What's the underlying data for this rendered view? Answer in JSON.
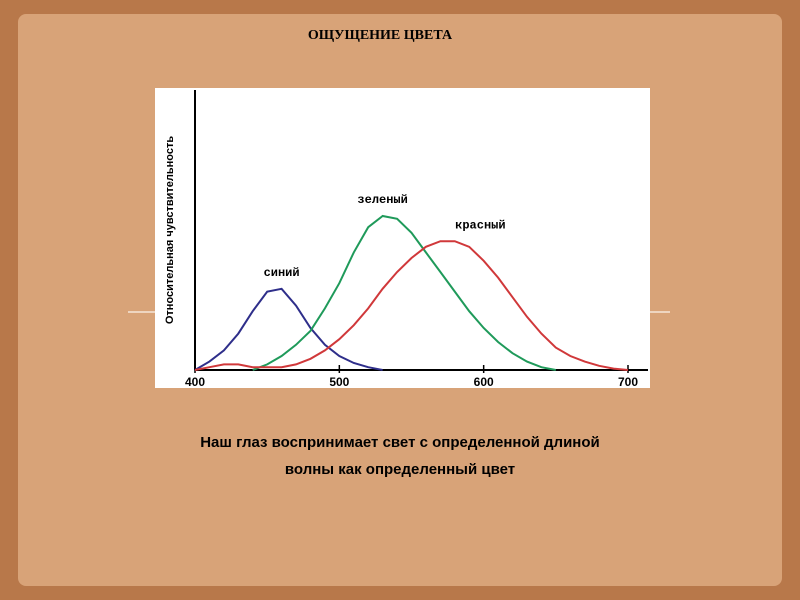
{
  "chart_data": {
    "type": "line",
    "title": "ОЩУЩЕНИЕ ЦВЕТА",
    "ylabel": "Относительная чувствительность",
    "xlim": [
      400,
      700
    ],
    "xticks": [
      400,
      500,
      600,
      700
    ],
    "ylim": [
      0,
      1
    ],
    "series": [
      {
        "name": "синий",
        "color": "#2e2e8a",
        "x": [
          400,
          410,
          420,
          430,
          440,
          450,
          460,
          470,
          480,
          490,
          500,
          510,
          520,
          530
        ],
        "values": [
          0,
          0.03,
          0.07,
          0.13,
          0.21,
          0.28,
          0.29,
          0.23,
          0.15,
          0.09,
          0.05,
          0.025,
          0.01,
          0
        ]
      },
      {
        "name": "зеленый",
        "color": "#1f9a5a",
        "x": [
          440,
          450,
          460,
          470,
          480,
          490,
          500,
          510,
          520,
          530,
          540,
          550,
          560,
          570,
          580,
          590,
          600,
          610,
          620,
          630,
          640,
          650
        ],
        "values": [
          0,
          0.02,
          0.05,
          0.09,
          0.14,
          0.22,
          0.31,
          0.42,
          0.51,
          0.55,
          0.54,
          0.49,
          0.42,
          0.35,
          0.28,
          0.21,
          0.15,
          0.1,
          0.06,
          0.03,
          0.01,
          0
        ]
      },
      {
        "name": "красный",
        "color": "#d0383a",
        "x": [
          400,
          410,
          420,
          430,
          440,
          450,
          460,
          470,
          480,
          490,
          500,
          510,
          520,
          530,
          540,
          550,
          560,
          570,
          580,
          590,
          600,
          610,
          620,
          630,
          640,
          650,
          660,
          670,
          680,
          690,
          700
        ],
        "values": [
          0,
          0.01,
          0.02,
          0.02,
          0.01,
          0.01,
          0.01,
          0.02,
          0.04,
          0.07,
          0.11,
          0.16,
          0.22,
          0.29,
          0.35,
          0.4,
          0.44,
          0.46,
          0.46,
          0.44,
          0.39,
          0.33,
          0.26,
          0.19,
          0.13,
          0.08,
          0.05,
          0.03,
          0.015,
          0.005,
          0
        ]
      }
    ]
  },
  "caption": [
    "Наш глаз воспринимает свет с определенной длиной",
    "волны как определенный цвет"
  ]
}
